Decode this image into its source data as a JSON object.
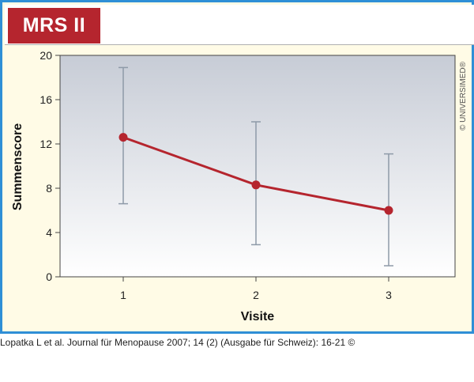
{
  "header": {
    "title": "MRS II",
    "accent_color": "#b5252e"
  },
  "copyright_mark": "© UNIVERSIMED®",
  "caption": "Lopatka L et al. Journal für Menopause 2007; 14 (2) (Ausgabe für Schweiz): 16-21 ©",
  "chart_data": {
    "type": "line",
    "title": "MRS II",
    "xlabel": "Visite",
    "ylabel": "Summenscore",
    "categories": [
      "1",
      "2",
      "3"
    ],
    "x": [
      1,
      2,
      3
    ],
    "ylim": [
      0,
      20
    ],
    "yticks": [
      0,
      4,
      8,
      12,
      16,
      20
    ],
    "series": [
      {
        "values": [
          12.6,
          8.3,
          6.0
        ],
        "error_low": [
          6.6,
          2.9,
          1.0
        ],
        "error_high": [
          18.9,
          14.0,
          11.1
        ],
        "color": "#b5252e"
      }
    ],
    "error_bar_color": "#8e9aa8",
    "grid": false,
    "legend": "none"
  }
}
